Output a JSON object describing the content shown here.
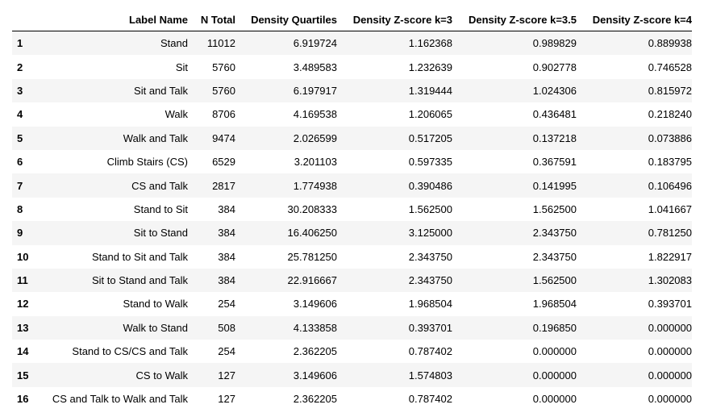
{
  "table": {
    "columns": [
      "",
      "Label Name",
      "N Total",
      "Density Quartiles",
      "Density Z-score k=3",
      "Density Z-score k=3.5",
      "Density Z-score k=4"
    ],
    "rows": [
      [
        "1",
        "Stand",
        "11012",
        "6.919724",
        "1.162368",
        "0.989829",
        "0.889938"
      ],
      [
        "2",
        "Sit",
        "5760",
        "3.489583",
        "1.232639",
        "0.902778",
        "0.746528"
      ],
      [
        "3",
        "Sit and Talk",
        "5760",
        "6.197917",
        "1.319444",
        "1.024306",
        "0.815972"
      ],
      [
        "4",
        "Walk",
        "8706",
        "4.169538",
        "1.206065",
        "0.436481",
        "0.218240"
      ],
      [
        "5",
        "Walk and Talk",
        "9474",
        "2.026599",
        "0.517205",
        "0.137218",
        "0.073886"
      ],
      [
        "6",
        "Climb Stairs (CS)",
        "6529",
        "3.201103",
        "0.597335",
        "0.367591",
        "0.183795"
      ],
      [
        "7",
        "CS and Talk",
        "2817",
        "1.774938",
        "0.390486",
        "0.141995",
        "0.106496"
      ],
      [
        "8",
        "Stand to Sit",
        "384",
        "30.208333",
        "1.562500",
        "1.562500",
        "1.041667"
      ],
      [
        "9",
        "Sit to Stand",
        "384",
        "16.406250",
        "3.125000",
        "2.343750",
        "0.781250"
      ],
      [
        "10",
        "Stand to Sit and Talk",
        "384",
        "25.781250",
        "2.343750",
        "2.343750",
        "1.822917"
      ],
      [
        "11",
        "Sit to Stand and Talk",
        "384",
        "22.916667",
        "2.343750",
        "1.562500",
        "1.302083"
      ],
      [
        "12",
        "Stand to Walk",
        "254",
        "3.149606",
        "1.968504",
        "1.968504",
        "0.393701"
      ],
      [
        "13",
        "Walk to Stand",
        "508",
        "4.133858",
        "0.393701",
        "0.196850",
        "0.000000"
      ],
      [
        "14",
        "Stand to CS/CS and Talk",
        "254",
        "2.362205",
        "0.787402",
        "0.000000",
        "0.000000"
      ],
      [
        "15",
        "CS to Walk",
        "127",
        "3.149606",
        "1.574803",
        "0.000000",
        "0.000000"
      ],
      [
        "16",
        "CS and Talk to Walk and Talk",
        "127",
        "2.362205",
        "0.787402",
        "0.000000",
        "0.000000"
      ]
    ]
  }
}
